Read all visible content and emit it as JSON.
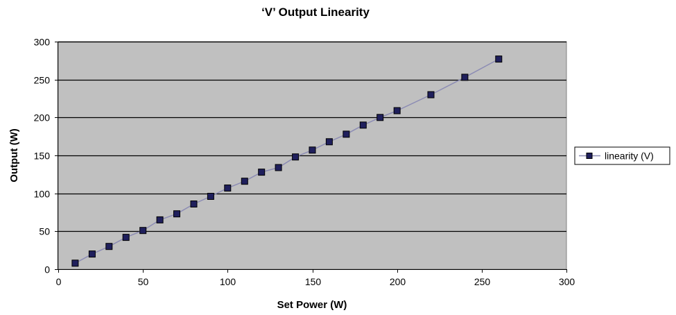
{
  "chart_data": {
    "type": "line",
    "title": "‘V’ Output Linearity",
    "xlabel": "Set Power (W)",
    "ylabel": "Output (W)",
    "xlim": [
      0,
      300
    ],
    "ylim": [
      0,
      300
    ],
    "xticks": [
      0,
      50,
      100,
      150,
      200,
      250,
      300
    ],
    "yticks": [
      0,
      50,
      100,
      150,
      200,
      250,
      300
    ],
    "grid": "horizontal",
    "legend_position": "right",
    "series": [
      {
        "name": "linearity (V)",
        "marker": "square",
        "x": [
          10,
          20,
          30,
          40,
          50,
          60,
          70,
          80,
          90,
          100,
          110,
          120,
          130,
          140,
          150,
          160,
          170,
          180,
          190,
          200,
          220,
          240,
          260
        ],
        "y": [
          8,
          20,
          30,
          42,
          51,
          65,
          73,
          86,
          96,
          107,
          116,
          128,
          134,
          148,
          157,
          168,
          178,
          190,
          200,
          209,
          230,
          253,
          277
        ]
      }
    ],
    "colors": {
      "plot_background": "#c0c0c0",
      "gridline": "#000000",
      "line": "#8c8cb4",
      "marker_fill": "#1f1f5c",
      "marker_stroke": "#000000"
    }
  }
}
